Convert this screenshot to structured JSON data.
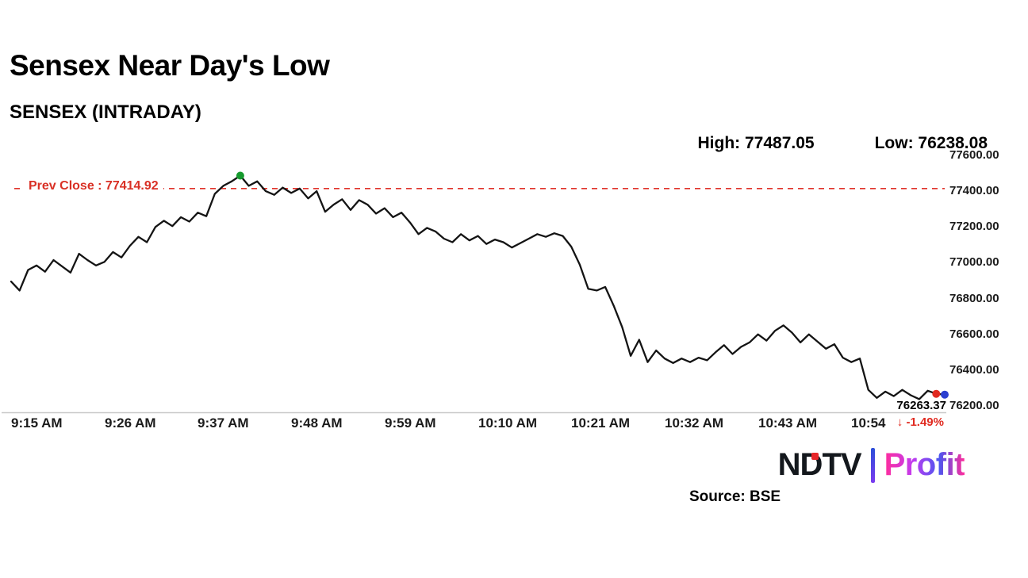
{
  "page": {
    "title": "Sensex Near Day's Low",
    "subtitle": "SENSEX (INTRADAY)",
    "source": "Source: BSE"
  },
  "stats": {
    "high_label": "High: 77487.05",
    "low_label": "Low: 76238.08"
  },
  "prev_close": {
    "label": "Prev Close : 77414.92",
    "value": 77414.92
  },
  "last_trade": {
    "price_label": "76263.37",
    "change_label": "↓ -1.49%"
  },
  "logo": {
    "ndtv": "NDTV",
    "separator": "|",
    "profit": "Profit"
  },
  "colors": {
    "line": "#141414",
    "prev_close_red": "#e0332b",
    "change_red": "#e02a20",
    "high_marker_green": "#169a2e",
    "last_tick_red": "#e02a20",
    "session_end_blue": "#2b3fd0",
    "axis_gray": "#c8c8c8"
  },
  "chart_data": {
    "type": "line",
    "title": "SENSEX (INTRADAY)",
    "xlabel": "",
    "ylabel": "",
    "grid": false,
    "legend": "none",
    "y_min": 76200,
    "y_max": 77600,
    "x_start": "09:15",
    "x_end": "11:05",
    "prev_close": 77414.92,
    "high": 77487.05,
    "low": 76238.08,
    "last": 76263.37,
    "change_pct": -1.49,
    "y_axis_labels": [
      {
        "v": 77600,
        "label": "77600.00"
      },
      {
        "v": 77400,
        "label": "77400.00"
      },
      {
        "v": 77200,
        "label": "77200.00"
      },
      {
        "v": 77000,
        "label": "77000.00"
      },
      {
        "v": 76800,
        "label": "76800.00"
      },
      {
        "v": 76600,
        "label": "76600.00"
      },
      {
        "v": 76400,
        "label": "76400.00"
      },
      {
        "v": 76200,
        "label": "76200.00"
      }
    ],
    "x_axis_labels": [
      {
        "t": "09:15",
        "label": "9:15 AM"
      },
      {
        "t": "09:26",
        "label": "9:26 AM"
      },
      {
        "t": "09:37",
        "label": "9:37 AM"
      },
      {
        "t": "09:48",
        "label": "9:48 AM"
      },
      {
        "t": "09:59",
        "label": "9:59 AM"
      },
      {
        "t": "10:10",
        "label": "10:10 AM"
      },
      {
        "t": "10:21",
        "label": "10:21 AM"
      },
      {
        "t": "10:32",
        "label": "10:32 AM"
      },
      {
        "t": "10:43",
        "label": "10:43 AM"
      },
      {
        "t": "10:54",
        "label": "10:54"
      }
    ],
    "markers": [
      {
        "t": "09:42",
        "v": 77487.05,
        "color": "#169a2e",
        "name": "day-high-marker"
      },
      {
        "t": "11:04",
        "v": 76268,
        "color": "#e02a20",
        "name": "last-tick-marker"
      },
      {
        "t": "11:05",
        "v": 76263.37,
        "color": "#2b3fd0",
        "name": "session-end-marker"
      }
    ],
    "points": [
      [
        "09:15",
        76895
      ],
      [
        "09:16",
        76845
      ],
      [
        "09:17",
        76960
      ],
      [
        "09:18",
        76985
      ],
      [
        "09:19",
        76950
      ],
      [
        "09:20",
        77015
      ],
      [
        "09:21",
        76980
      ],
      [
        "09:22",
        76945
      ],
      [
        "09:23",
        77050
      ],
      [
        "09:24",
        77015
      ],
      [
        "09:25",
        76985
      ],
      [
        "09:26",
        77005
      ],
      [
        "09:27",
        77060
      ],
      [
        "09:28",
        77030
      ],
      [
        "09:29",
        77095
      ],
      [
        "09:30",
        77145
      ],
      [
        "09:31",
        77115
      ],
      [
        "09:32",
        77200
      ],
      [
        "09:33",
        77235
      ],
      [
        "09:34",
        77205
      ],
      [
        "09:35",
        77255
      ],
      [
        "09:36",
        77230
      ],
      [
        "09:37",
        77280
      ],
      [
        "09:38",
        77260
      ],
      [
        "09:39",
        77385
      ],
      [
        "09:40",
        77430
      ],
      [
        "09:41",
        77455
      ],
      [
        "09:42",
        77487.05
      ],
      [
        "09:43",
        77430
      ],
      [
        "09:44",
        77455
      ],
      [
        "09:45",
        77400
      ],
      [
        "09:46",
        77380
      ],
      [
        "09:47",
        77420
      ],
      [
        "09:48",
        77390
      ],
      [
        "09:49",
        77415
      ],
      [
        "09:50",
        77360
      ],
      [
        "09:51",
        77400
      ],
      [
        "09:52",
        77285
      ],
      [
        "09:53",
        77325
      ],
      [
        "09:54",
        77355
      ],
      [
        "09:55",
        77295
      ],
      [
        "09:56",
        77350
      ],
      [
        "09:57",
        77325
      ],
      [
        "09:58",
        77275
      ],
      [
        "09:59",
        77305
      ],
      [
        "10:00",
        77255
      ],
      [
        "10:01",
        77280
      ],
      [
        "10:02",
        77225
      ],
      [
        "10:03",
        77160
      ],
      [
        "10:04",
        77195
      ],
      [
        "10:05",
        77175
      ],
      [
        "10:06",
        77135
      ],
      [
        "10:07",
        77115
      ],
      [
        "10:08",
        77160
      ],
      [
        "10:09",
        77125
      ],
      [
        "10:10",
        77150
      ],
      [
        "10:11",
        77105
      ],
      [
        "10:12",
        77130
      ],
      [
        "10:13",
        77115
      ],
      [
        "10:14",
        77085
      ],
      [
        "10:15",
        77110
      ],
      [
        "10:16",
        77135
      ],
      [
        "10:17",
        77160
      ],
      [
        "10:18",
        77145
      ],
      [
        "10:19",
        77165
      ],
      [
        "10:20",
        77150
      ],
      [
        "10:21",
        77090
      ],
      [
        "10:22",
        76990
      ],
      [
        "10:23",
        76855
      ],
      [
        "10:24",
        76845
      ],
      [
        "10:25",
        76865
      ],
      [
        "10:26",
        76760
      ],
      [
        "10:27",
        76640
      ],
      [
        "10:28",
        76480
      ],
      [
        "10:29",
        76570
      ],
      [
        "10:30",
        76445
      ],
      [
        "10:31",
        76510
      ],
      [
        "10:32",
        76465
      ],
      [
        "10:33",
        76440
      ],
      [
        "10:34",
        76465
      ],
      [
        "10:35",
        76445
      ],
      [
        "10:36",
        76470
      ],
      [
        "10:37",
        76455
      ],
      [
        "10:38",
        76500
      ],
      [
        "10:39",
        76540
      ],
      [
        "10:40",
        76490
      ],
      [
        "10:41",
        76530
      ],
      [
        "10:42",
        76555
      ],
      [
        "10:43",
        76600
      ],
      [
        "10:44",
        76565
      ],
      [
        "10:45",
        76620
      ],
      [
        "10:46",
        76650
      ],
      [
        "10:47",
        76610
      ],
      [
        "10:48",
        76555
      ],
      [
        "10:49",
        76600
      ],
      [
        "10:50",
        76560
      ],
      [
        "10:51",
        76520
      ],
      [
        "10:52",
        76545
      ],
      [
        "10:53",
        76470
      ],
      [
        "10:54",
        76445
      ],
      [
        "10:55",
        76465
      ],
      [
        "10:56",
        76290
      ],
      [
        "10:57",
        76245
      ],
      [
        "10:58",
        76280
      ],
      [
        "10:59",
        76255
      ],
      [
        "11:00",
        76290
      ],
      [
        "11:01",
        76260
      ],
      [
        "11:02",
        76238.08
      ],
      [
        "11:03",
        76285
      ],
      [
        "11:04",
        76268
      ],
      [
        "11:05",
        76263.37
      ]
    ]
  }
}
